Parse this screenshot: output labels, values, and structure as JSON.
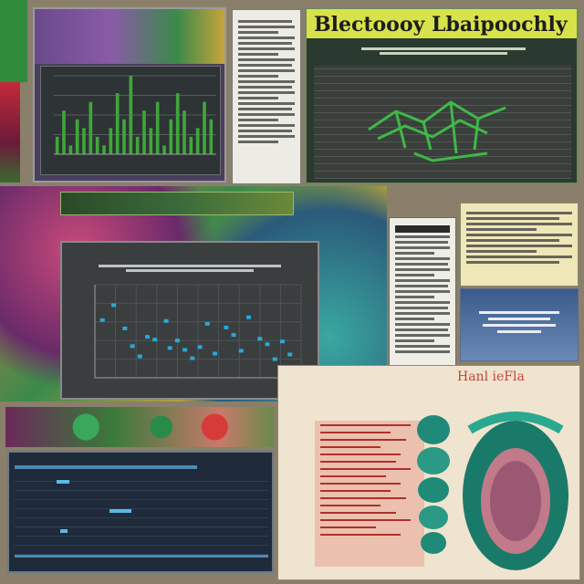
{
  "colors": {
    "background": "#8a7f6a",
    "banner": "#d8e24a",
    "dark_panel": "#2e3336",
    "chart_bg": "#3a3e3f",
    "bar_green": "#3fa63a",
    "teal": "#1f8a78",
    "scatter_blue": "#2aa8d8",
    "coral": "#e48e7a"
  },
  "banner": {
    "title": "Blectoooy Lbaipoochly"
  },
  "anatomy_panel": {
    "title": "Hanl ieFla"
  },
  "chart_data": [
    {
      "type": "bar",
      "values": [
        2,
        5,
        1,
        4,
        3,
        6,
        2,
        1,
        3,
        7,
        4,
        9,
        2,
        5,
        3,
        6,
        1,
        4,
        7,
        5,
        2,
        3,
        6,
        4
      ]
    },
    {
      "type": "scatter",
      "points": [
        [
          2,
          6.2
        ],
        [
          5,
          7.8
        ],
        [
          8,
          5.3
        ],
        [
          10,
          3.4
        ],
        [
          12,
          2.3
        ],
        [
          14,
          4.4
        ],
        [
          16,
          4.1
        ],
        [
          19,
          6.1
        ],
        [
          20,
          3.2
        ],
        [
          22,
          4.0
        ],
        [
          24,
          3.0
        ],
        [
          26,
          2.1
        ],
        [
          28,
          3.3
        ],
        [
          30,
          5.8
        ],
        [
          32,
          2.6
        ],
        [
          35,
          5.4
        ],
        [
          37,
          4.6
        ],
        [
          39,
          2.9
        ],
        [
          41,
          6.5
        ],
        [
          44,
          4.2
        ],
        [
          46,
          3.6
        ],
        [
          48,
          2.0
        ],
        [
          50,
          3.9
        ],
        [
          52,
          2.5
        ]
      ],
      "xlim": [
        0,
        55
      ],
      "ylim": [
        0,
        10
      ]
    }
  ]
}
